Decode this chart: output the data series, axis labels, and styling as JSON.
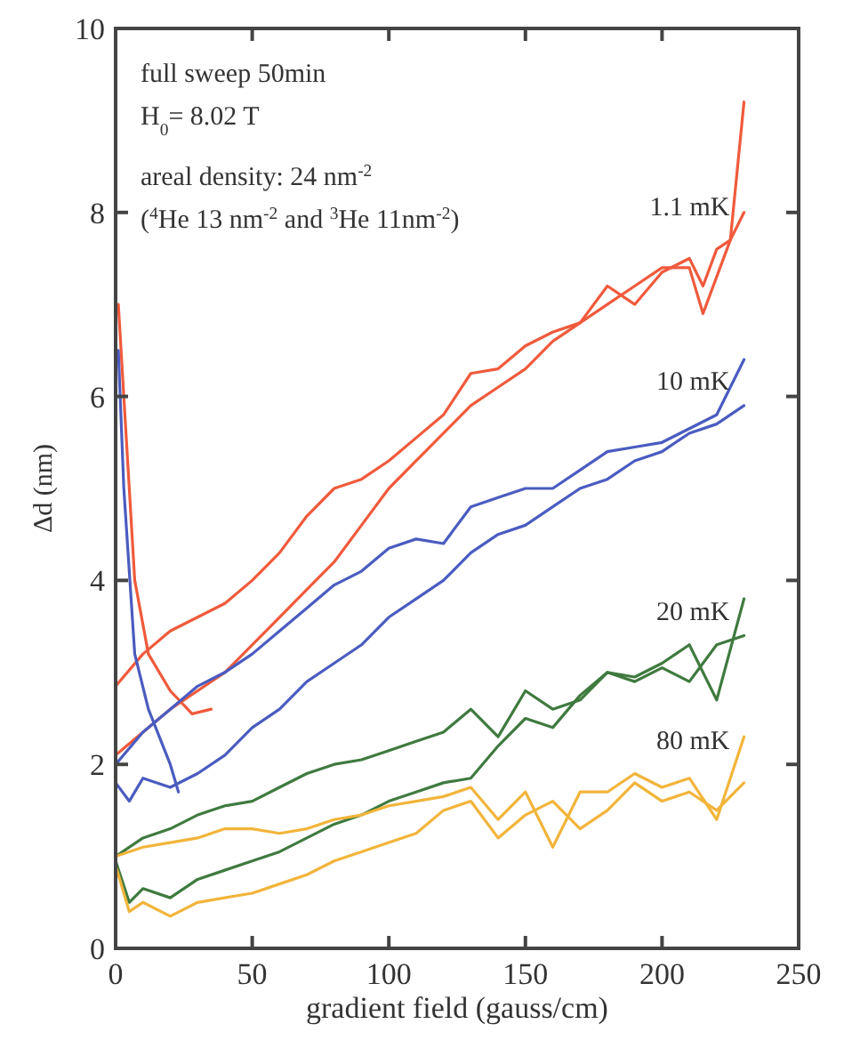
{
  "chart_data": {
    "type": "line",
    "xlabel": "gradient field (gauss/cm)",
    "ylabel": "Δd (nm)",
    "xlim": [
      0,
      250
    ],
    "ylim": [
      0,
      10
    ],
    "xticks": [
      0,
      50,
      100,
      150,
      200,
      250
    ],
    "yticks": [
      0,
      2,
      4,
      6,
      8,
      10
    ],
    "grid": false,
    "marker": "none",
    "line_style": "solid",
    "annotations": [
      "full sweep 50min",
      "H$_{0}$= 8.02 T",
      "areal density: 24 nm$^{-2}$",
      "($^{4}$He 13 nm$^{-2}$ and $^{3}$He 11nm$^{-2}$)"
    ],
    "series": [
      {
        "name": "1.1 mK",
        "color": "#f05a3c",
        "x": [
          0,
          10,
          20,
          30,
          40,
          50,
          60,
          70,
          80,
          90,
          100,
          110,
          120,
          130,
          140,
          150,
          160,
          170,
          180,
          190,
          200,
          210,
          215,
          220,
          225,
          230
        ],
        "values": [
          2.85,
          3.2,
          3.45,
          3.6,
          3.75,
          4.0,
          4.3,
          4.7,
          5.0,
          5.1,
          5.3,
          5.55,
          5.8,
          6.25,
          6.3,
          6.55,
          6.7,
          6.8,
          7.2,
          7.0,
          7.35,
          7.5,
          7.2,
          7.6,
          7.7,
          8.0
        ]
      },
      {
        "color": "#f05a3c",
        "x": [
          0,
          10,
          20,
          30,
          40,
          50,
          60,
          70,
          80,
          90,
          100,
          110,
          120,
          130,
          140,
          150,
          160,
          170,
          180,
          190,
          200,
          210,
          215,
          220,
          225,
          230
        ],
        "values": [
          2.1,
          2.35,
          2.6,
          2.8,
          3.0,
          3.3,
          3.6,
          3.9,
          4.2,
          4.6,
          5.0,
          5.3,
          5.6,
          5.9,
          6.1,
          6.3,
          6.6,
          6.8,
          7.0,
          7.2,
          7.4,
          7.4,
          6.9,
          7.3,
          7.7,
          9.2
        ]
      },
      {
        "color": "#f05a3c",
        "x": [
          1,
          3,
          7,
          12,
          20,
          28,
          35
        ],
        "values": [
          7.0,
          6.0,
          4.0,
          3.2,
          2.8,
          2.55,
          2.6
        ]
      },
      {
        "name": "10 mK",
        "color": "#4a5cc0",
        "x": [
          0,
          10,
          20,
          30,
          40,
          50,
          60,
          70,
          80,
          90,
          100,
          110,
          120,
          130,
          140,
          150,
          160,
          170,
          180,
          190,
          200,
          210,
          220,
          230
        ],
        "values": [
          2.0,
          2.35,
          2.6,
          2.85,
          3.0,
          3.2,
          3.45,
          3.7,
          3.95,
          4.1,
          4.35,
          4.45,
          4.4,
          4.8,
          4.9,
          5.0,
          5.0,
          5.2,
          5.4,
          5.45,
          5.5,
          5.65,
          5.8,
          6.4
        ]
      },
      {
        "color": "#4a5cc0",
        "x": [
          0,
          5,
          10,
          20,
          30,
          40,
          50,
          60,
          70,
          80,
          90,
          100,
          110,
          120,
          130,
          140,
          150,
          160,
          170,
          180,
          190,
          200,
          210,
          220,
          230
        ],
        "values": [
          1.8,
          1.6,
          1.85,
          1.75,
          1.9,
          2.1,
          2.4,
          2.6,
          2.9,
          3.1,
          3.3,
          3.6,
          3.8,
          4.0,
          4.3,
          4.5,
          4.6,
          4.8,
          5.0,
          5.1,
          5.3,
          5.4,
          5.6,
          5.7,
          5.9
        ]
      },
      {
        "color": "#4a5cc0",
        "x": [
          1,
          3,
          7,
          12,
          20,
          23
        ],
        "values": [
          6.5,
          5.0,
          3.2,
          2.6,
          2.0,
          1.7
        ]
      },
      {
        "name": "20 mK",
        "color": "#3f7a3f",
        "x": [
          0,
          10,
          20,
          30,
          40,
          50,
          60,
          70,
          80,
          90,
          100,
          110,
          120,
          130,
          140,
          150,
          160,
          170,
          180,
          190,
          200,
          210,
          220,
          230
        ],
        "values": [
          1.0,
          1.2,
          1.3,
          1.45,
          1.55,
          1.6,
          1.75,
          1.9,
          2.0,
          2.05,
          2.15,
          2.25,
          2.35,
          2.6,
          2.3,
          2.8,
          2.6,
          2.7,
          3.0,
          2.9,
          3.05,
          2.9,
          3.3,
          3.4
        ]
      },
      {
        "color": "#3f7a3f",
        "x": [
          0,
          5,
          10,
          20,
          30,
          40,
          50,
          60,
          70,
          80,
          90,
          100,
          110,
          120,
          130,
          140,
          150,
          160,
          170,
          180,
          190,
          200,
          210,
          220,
          230
        ],
        "values": [
          0.95,
          0.5,
          0.65,
          0.55,
          0.75,
          0.85,
          0.95,
          1.05,
          1.2,
          1.35,
          1.45,
          1.6,
          1.7,
          1.8,
          1.85,
          2.2,
          2.5,
          2.4,
          2.75,
          3.0,
          2.95,
          3.1,
          3.3,
          2.7,
          3.8
        ]
      },
      {
        "name": "80 mK",
        "color": "#f2b43a",
        "x": [
          0,
          10,
          20,
          30,
          40,
          50,
          60,
          70,
          80,
          90,
          100,
          110,
          120,
          130,
          140,
          150,
          160,
          170,
          180,
          190,
          200,
          210,
          220,
          230
        ],
        "values": [
          1.0,
          1.1,
          1.15,
          1.2,
          1.3,
          1.3,
          1.25,
          1.3,
          1.4,
          1.45,
          1.55,
          1.6,
          1.65,
          1.75,
          1.4,
          1.7,
          1.1,
          1.7,
          1.7,
          1.9,
          1.75,
          1.85,
          1.4,
          2.3
        ]
      },
      {
        "color": "#f2b43a",
        "x": [
          0,
          5,
          10,
          20,
          30,
          40,
          50,
          60,
          70,
          80,
          90,
          100,
          110,
          120,
          130,
          140,
          150,
          160,
          170,
          180,
          190,
          200,
          210,
          220,
          230
        ],
        "values": [
          0.9,
          0.4,
          0.5,
          0.35,
          0.5,
          0.55,
          0.6,
          0.7,
          0.8,
          0.95,
          1.05,
          1.15,
          1.25,
          1.5,
          1.6,
          1.2,
          1.45,
          1.6,
          1.3,
          1.5,
          1.8,
          1.6,
          1.7,
          1.5,
          1.8
        ]
      }
    ]
  }
}
